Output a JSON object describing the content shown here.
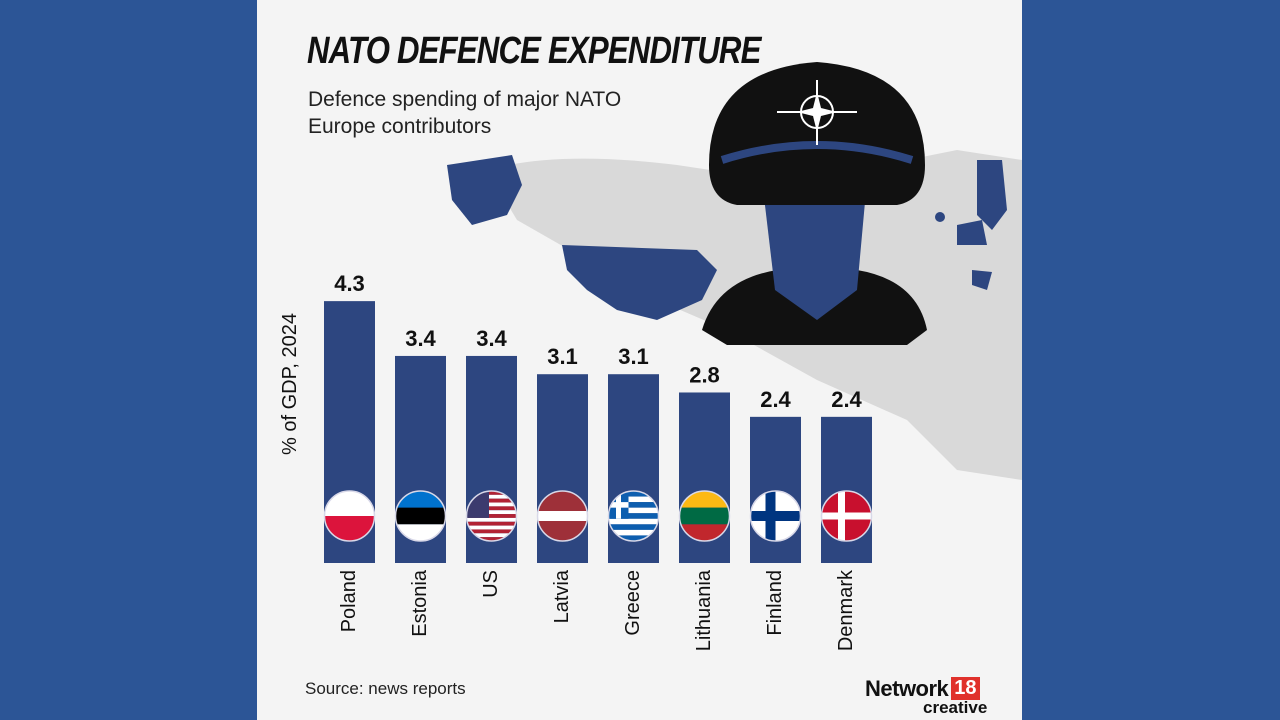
{
  "title": "NATO DEFENCE EXPENDITURE",
  "subtitle": "Defence spending of major NATO Europe contributors",
  "source": "Source: news reports",
  "logo": {
    "name": "Network",
    "number": "18",
    "sub": "creative"
  },
  "colors": {
    "background": "#2c5596",
    "bar": "#2d4680",
    "panel": "#f4f4f4",
    "map_highlight": "#2d4680",
    "map_base": "#d6d6d6"
  },
  "chart_data": {
    "type": "bar",
    "title": "NATO DEFENCE EXPENDITURE",
    "ylabel": "% of GDP, 2024",
    "xlabel": "",
    "categories": [
      "Poland",
      "Estonia",
      "US",
      "Latvia",
      "Greece",
      "Lithuania",
      "Finland",
      "Denmark"
    ],
    "values": [
      4.3,
      3.4,
      3.4,
      3.1,
      3.1,
      2.8,
      2.4,
      2.4
    ],
    "data_labels": [
      "4.3",
      "3.4",
      "3.4",
      "3.1",
      "3.1",
      "2.8",
      "2.4",
      "2.4"
    ],
    "flags": [
      "poland",
      "estonia",
      "us",
      "latvia",
      "greece",
      "lithuania",
      "finland",
      "denmark"
    ],
    "grid": false,
    "legend": "none"
  }
}
